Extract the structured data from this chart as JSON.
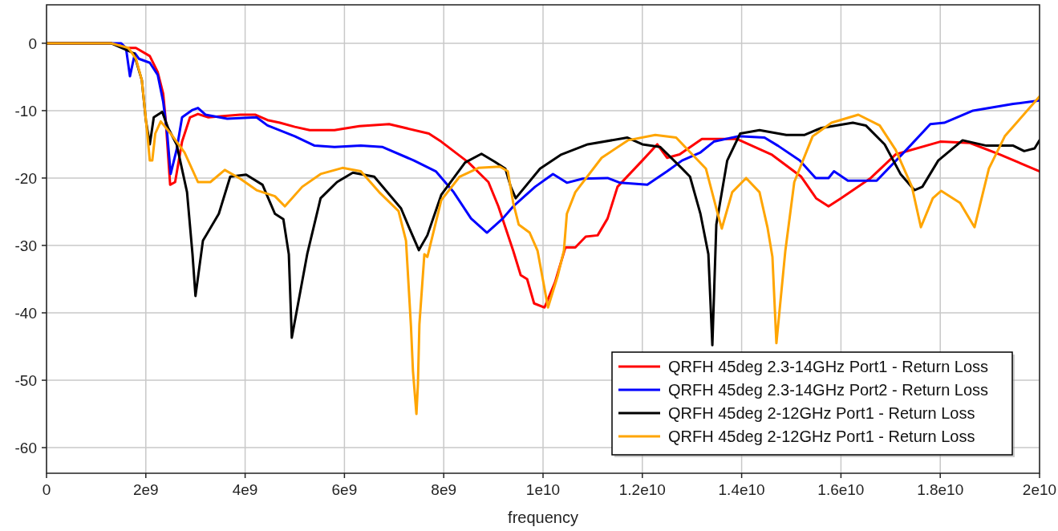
{
  "chart_data": {
    "type": "line",
    "xlabel": "frequency",
    "xlim": [
      0,
      20000000000.0
    ],
    "ylim": [
      -63.8,
      5.7
    ],
    "xticks": [
      0,
      {
        "value": 2000000000.0,
        "label": "2e9"
      },
      {
        "value": 4000000000.0,
        "label": "4e9"
      },
      {
        "value": 6000000000.0,
        "label": "6e9"
      },
      {
        "value": 8000000000.0,
        "label": "8e9"
      },
      {
        "value": 10000000000.0,
        "label": "1e10"
      },
      {
        "value": 12000000000.0,
        "label": "1.2e10"
      },
      {
        "value": 14000000000.0,
        "label": "1.4e10"
      },
      {
        "value": 16000000000.0,
        "label": "1.6e10"
      },
      {
        "value": 18000000000.0,
        "label": "1.8e10"
      },
      {
        "value": 20000000000.0,
        "label": "2e10"
      }
    ],
    "yticks": [
      -60,
      -50,
      -40,
      -30,
      -20,
      -10,
      0
    ],
    "grid": true,
    "legend": "bottom right",
    "marker": "none",
    "line_style": "solid",
    "series": [
      {
        "name": "QRFH 45deg 2.3-14GHz Port1 - Return Loss",
        "color": "#ff0000",
        "x": [
          0,
          1300000000.0,
          1600000000.0,
          1800000000.0,
          2080000000.0,
          2240000000.0,
          2350000000.0,
          2400000000.0,
          2490000000.0,
          2590000000.0,
          2730000000.0,
          2890000000.0,
          3050000000.0,
          3260000000.0,
          3900000000.0,
          4200000000.0,
          4450000000.0,
          4700000000.0,
          5000000000.0,
          5300000000.0,
          5800000000.0,
          6300000000.0,
          6900000000.0,
          7700000000.0,
          7950000000.0,
          8500000000.0,
          8900000000.0,
          9100000000.0,
          9400000000.0,
          9550000000.0,
          9680000000.0,
          9820000000.0,
          10030000000.0,
          10240000000.0,
          10450000000.0,
          10650000000.0,
          10860000000.0,
          11100000000.0,
          11300000000.0,
          11500000000.0,
          12000000000.0,
          12300000000.0,
          12500000000.0,
          12750000000.0,
          13200000000.0,
          13900000000.0,
          14600000000.0,
          15200000000.0,
          15500000000.0,
          15750000000.0,
          16000000000.0,
          16600000000.0,
          17100000000.0,
          18000000000.0,
          18600000000.0,
          19200000000.0,
          20000000000.0
        ],
        "values": [
          0,
          0,
          -0.7,
          -0.7,
          -1.9,
          -4.3,
          -7.5,
          -11.4,
          -21,
          -20.6,
          -14.6,
          -11,
          -10.5,
          -11,
          -10.6,
          -10.6,
          -11.4,
          -11.8,
          -12.4,
          -12.9,
          -12.9,
          -12.3,
          -12,
          -13.4,
          -14.6,
          -17.7,
          -20.6,
          -24.2,
          -30.8,
          -34.4,
          -35,
          -38.6,
          -39.2,
          -35.5,
          -30.3,
          -30.3,
          -28.7,
          -28.5,
          -26,
          -21.3,
          -17.4,
          -15,
          -17,
          -16.5,
          -14.2,
          -14.2,
          -16.5,
          -19.8,
          -23,
          -24.2,
          -23,
          -20,
          -16.5,
          -14.6,
          -14.8,
          -16.5,
          -19
        ]
      },
      {
        "name": "QRFH 45deg 2.3-14GHz Port2 - Return Loss",
        "color": "#0000ff",
        "x": [
          0,
          1500000000.0,
          1600000000.0,
          1680000000.0,
          1780000000.0,
          1860000000.0,
          2080000000.0,
          2240000000.0,
          2350000000.0,
          2430000000.0,
          2500000000.0,
          2620000000.0,
          2730000000.0,
          2940000000.0,
          3050000000.0,
          3200000000.0,
          3640000000.0,
          4230000000.0,
          4450000000.0,
          5000000000.0,
          5400000000.0,
          5800000000.0,
          6330000000.0,
          6770000000.0,
          7400000000.0,
          7840000000.0,
          8200000000.0,
          8550000000.0,
          8870000000.0,
          9190000000.0,
          9400000000.0,
          9840000000.0,
          10200000000.0,
          10480000000.0,
          10800000000.0,
          11300000000.0,
          11550000000.0,
          12100000000.0,
          12500000000.0,
          12800000000.0,
          13170000000.0,
          13440000000.0,
          13930000000.0,
          14460000000.0,
          14730000000.0,
          15170000000.0,
          15490000000.0,
          15750000000.0,
          15860000000.0,
          16140000000.0,
          16720000000.0,
          17320000000.0,
          17800000000.0,
          18080000000.0,
          18660000000.0,
          19470000000.0,
          20000000000.0
        ],
        "values": [
          0,
          0,
          -0.7,
          -4.9,
          -1.5,
          -2.3,
          -2.9,
          -4.7,
          -8.7,
          -13.4,
          -19.4,
          -15.8,
          -11,
          -9.9,
          -9.6,
          -10.6,
          -11.2,
          -11,
          -12.2,
          -13.8,
          -15.2,
          -15.4,
          -15.2,
          -15.4,
          -17.4,
          -19,
          -22.1,
          -26,
          -28.1,
          -26,
          -24.2,
          -21.3,
          -19.4,
          -20.7,
          -20.1,
          -20,
          -20.7,
          -21,
          -19,
          -17.4,
          -16.2,
          -14.6,
          -13.8,
          -14,
          -15.2,
          -17.4,
          -20,
          -20,
          -19,
          -20.4,
          -20.4,
          -15.8,
          -12,
          -11.8,
          -10,
          -9,
          -8.5
        ]
      },
      {
        "name": "QRFH 45deg 2-12GHz Port1 - Return Loss",
        "color": "#000000",
        "x": [
          0,
          1300000000.0,
          1760000000.0,
          1920000000.0,
          2000000000.0,
          2080000000.0,
          2160000000.0,
          2330000000.0,
          2450000000.0,
          2620000000.0,
          2830000000.0,
          2940000000.0,
          3000000000.0,
          3150000000.0,
          3470000000.0,
          3700000000.0,
          4020000000.0,
          4350000000.0,
          4600000000.0,
          4770000000.0,
          4880000000.0,
          4940000000.0,
          5250000000.0,
          5520000000.0,
          5850000000.0,
          6170000000.0,
          6600000000.0,
          7140000000.0,
          7300000000.0,
          7500000000.0,
          7670000000.0,
          7950000000.0,
          8430000000.0,
          8760000000.0,
          9030000000.0,
          9240000000.0,
          9350000000.0,
          9450000000.0,
          9940000000.0,
          10370000000.0,
          10900000000.0,
          11700000000.0,
          12000000000.0,
          12360000000.0,
          12800000000.0,
          12960000000.0,
          13170000000.0,
          13330000000.0,
          13410000000.0,
          13490000000.0,
          13710000000.0,
          13970000000.0,
          14360000000.0,
          14900000000.0,
          15270000000.0,
          15590000000.0,
          16240000000.0,
          16500000000.0,
          16880000000.0,
          17200000000.0,
          17480000000.0,
          17640000000.0,
          17960000000.0,
          18450000000.0,
          18930000000.0,
          19470000000.0,
          19690000000.0,
          19900000000.0,
          20000000000.0
        ],
        "values": [
          0,
          0,
          -1.5,
          -5.5,
          -11.4,
          -15,
          -11,
          -10.2,
          -12.6,
          -15,
          -22.1,
          -31.3,
          -37.5,
          -29.3,
          -25.3,
          -19.8,
          -19.5,
          -21,
          -25.3,
          -26.1,
          -31.3,
          -43.7,
          -31.3,
          -23,
          -20.6,
          -19.2,
          -19.8,
          -24.5,
          -27.3,
          -30.7,
          -28.5,
          -22.5,
          -17.7,
          -16.4,
          -17.6,
          -18.6,
          -21.3,
          -23,
          -18.6,
          -16.5,
          -15,
          -14,
          -15,
          -15.4,
          -18.6,
          -19.8,
          -25.3,
          -31.3,
          -44.8,
          -26.9,
          -17.4,
          -13.4,
          -12.9,
          -13.6,
          -13.6,
          -12.6,
          -11.8,
          -12.2,
          -15,
          -19.4,
          -21.8,
          -21.3,
          -17.4,
          -14.4,
          -15.2,
          -15.2,
          -16,
          -15.6,
          -14.4
        ]
      },
      {
        "name": "QRFH 45deg 2-12GHz Port1 - Return Loss",
        "color": "#ffa500",
        "x": [
          0,
          1300000000.0,
          1650000000.0,
          1800000000.0,
          1920000000.0,
          2030000000.0,
          2080000000.0,
          2130000000.0,
          2190000000.0,
          2300000000.0,
          2500000000.0,
          2780000000.0,
          3050000000.0,
          3300000000.0,
          3590000000.0,
          3900000000.0,
          4230000000.0,
          4600000000.0,
          4800000000.0,
          5150000000.0,
          5520000000.0,
          5960000000.0,
          6330000000.0,
          6700000000.0,
          7090000000.0,
          7240000000.0,
          7340000000.0,
          7380000000.0,
          7450000000.0,
          7480000000.0,
          7510000000.0,
          7610000000.0,
          7670000000.0,
          7950000000.0,
          8320000000.0,
          8700000000.0,
          9130000000.0,
          9290000000.0,
          9400000000.0,
          9510000000.0,
          9730000000.0,
          9890000000.0,
          10100000000.0,
          10300000000.0,
          10420000000.0,
          10480000000.0,
          10650000000.0,
          11180000000.0,
          11710000000.0,
          12260000000.0,
          12680000000.0,
          13280000000.0,
          13490000000.0,
          13600000000.0,
          13810000000.0,
          14090000000.0,
          14360000000.0,
          14520000000.0,
          14620000000.0,
          14700000000.0,
          14880000000.0,
          15060000000.0,
          15430000000.0,
          15810000000.0,
          16350000000.0,
          16780000000.0,
          17100000000.0,
          17430000000.0,
          17610000000.0,
          17850000000.0,
          18020000000.0,
          18400000000.0,
          18690000000.0,
          18980000000.0,
          19300000000.0,
          20000000000.0
        ],
        "values": [
          0,
          0,
          -0.7,
          -2.3,
          -5.5,
          -13.4,
          -17.4,
          -17.4,
          -13.4,
          -11.6,
          -13.4,
          -16.2,
          -20.6,
          -20.6,
          -18.8,
          -20.1,
          -21.8,
          -22.7,
          -24.2,
          -21.3,
          -19.4,
          -18.5,
          -19,
          -22.1,
          -24.9,
          -29.3,
          -42,
          -48.6,
          -55,
          -50.6,
          -41.7,
          -31.3,
          -31.7,
          -23.3,
          -19.8,
          -18.5,
          -18.3,
          -19,
          -23.7,
          -26.9,
          -28.1,
          -30.8,
          -39.2,
          -34.4,
          -30.8,
          -25.3,
          -22.1,
          -17,
          -14.4,
          -13.6,
          -14,
          -18.6,
          -24.5,
          -27.5,
          -22.1,
          -20,
          -22.1,
          -27.3,
          -31.7,
          -44.5,
          -30.8,
          -20.6,
          -13.8,
          -11.8,
          -10.6,
          -12.2,
          -15.8,
          -21.3,
          -27.3,
          -23,
          -21.9,
          -23.7,
          -27.3,
          -18.6,
          -13.8,
          -7.9
        ]
      }
    ]
  }
}
